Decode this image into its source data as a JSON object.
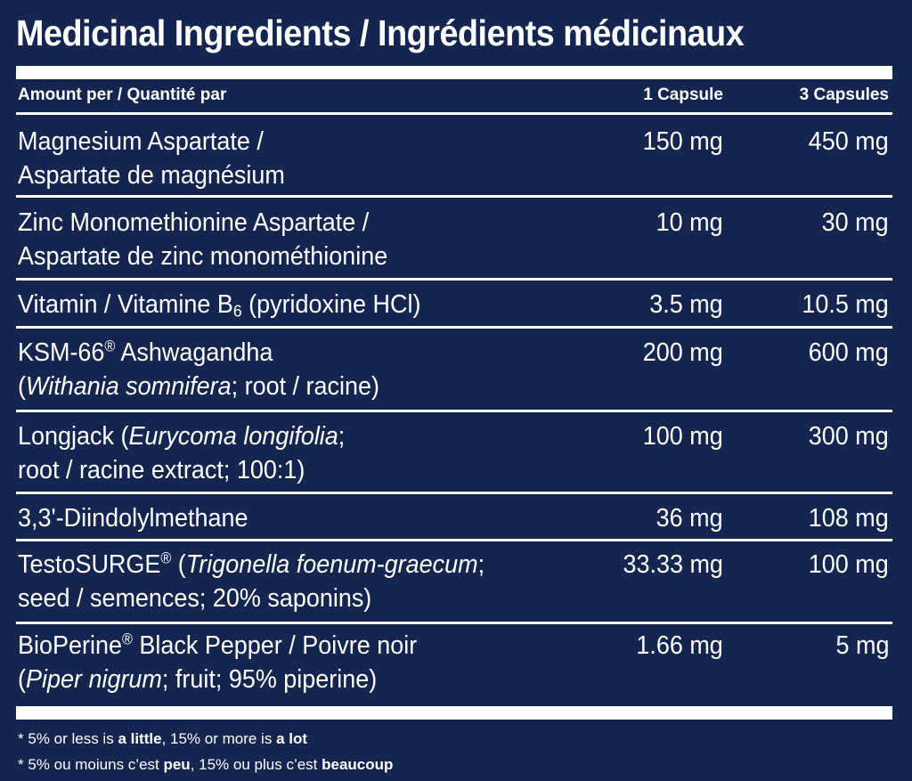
{
  "title": "Medicinal Ingredients / Ingrédients médicinaux",
  "header": {
    "amount_label": "Amount per / Quantité par",
    "col1": "1 Capsule",
    "col3": "3 Capsules"
  },
  "rows": [
    {
      "line1": "Magnesium Aspartate /",
      "line2": "Aspartate de magnésium",
      "v1": "150 mg",
      "v3": "450 mg"
    },
    {
      "line1": "Zinc Monomethionine Aspartate /",
      "line2": "Aspartate de zinc monométhionine",
      "v1": "10 mg",
      "v3": "30 mg"
    },
    {
      "line1_a": "Vitamin / Vitamine B",
      "line1_sub": "6",
      "line1_b": " (pyridoxine HCl)",
      "v1": "3.5 mg",
      "v3": "10.5 mg"
    },
    {
      "line1_a": "KSM-66",
      "line1_sup": "®",
      "line1_b": " Ashwagandha",
      "line2_a": "(",
      "line2_i": "Withania somnifera",
      "line2_b": "; root / racine)",
      "v1": "200 mg",
      "v3": "600 mg"
    },
    {
      "line1_a": "Longjack (",
      "line1_i": "Eurycoma longifolia",
      "line1_b": ";",
      "line2": "root / racine extract; 100:1)",
      "v1": "100 mg",
      "v3": "300 mg"
    },
    {
      "line1": "3,3'-Diindolylmethane",
      "v1": "36 mg",
      "v3": "108 mg"
    },
    {
      "line1_a": "TestoSURGE",
      "line1_sup": "®",
      "line1_b": " (",
      "line1_i": "Trigonella foenum-graecum",
      "line1_c": ";",
      "line2": "seed / semences; 20% saponins)",
      "v1": "33.33 mg",
      "v3": "100 mg"
    },
    {
      "line1_a": "BioPerine",
      "line1_sup": "®",
      "line1_b": " Black Pepper / Poivre noir",
      "line2_a": "(",
      "line2_i": "Piper nigrum",
      "line2_b": "; fruit; 95% piperine)",
      "v1": "1.66 mg",
      "v3": "5 mg"
    }
  ],
  "footnotes": {
    "en_a": "* 5% or less is ",
    "en_b": "a little",
    "en_c": ", 15% or more is ",
    "en_d": "a lot",
    "fr_a": "* 5% ou moiuns c’est ",
    "fr_b": "peu",
    "fr_c": ", 15% ou plus c’est ",
    "fr_d": "beaucoup"
  },
  "colors": {
    "background": "#14254f",
    "text": "#ffffff"
  }
}
